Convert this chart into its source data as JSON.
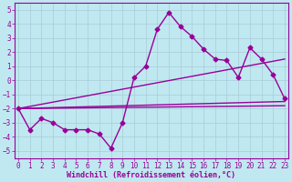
{
  "x": [
    0,
    1,
    2,
    3,
    4,
    5,
    6,
    7,
    8,
    9,
    10,
    11,
    12,
    13,
    14,
    15,
    16,
    17,
    18,
    19,
    20,
    21,
    22,
    23
  ],
  "y_main": [
    -2.0,
    -3.5,
    -2.7,
    -3.0,
    -3.5,
    -3.5,
    -3.5,
    -3.8,
    -4.8,
    -3.0,
    0.2,
    1.0,
    3.6,
    4.8,
    3.8,
    3.1,
    2.2,
    1.5,
    1.4,
    0.2,
    2.3,
    1.5,
    0.4,
    -1.3
  ],
  "straight_lines": [
    {
      "x0": 0,
      "y0": -2.0,
      "x1": 23,
      "y1": 1.5
    },
    {
      "x0": 0,
      "y0": -2.0,
      "x1": 23,
      "y1": -1.5
    },
    {
      "x0": 0,
      "y0": -2.0,
      "x1": 23,
      "y1": -1.8
    }
  ],
  "ylim": [
    -5.5,
    5.5
  ],
  "xlim": [
    -0.3,
    23.3
  ],
  "yticks": [
    -5,
    -4,
    -3,
    -2,
    -1,
    0,
    1,
    2,
    3,
    4,
    5
  ],
  "xticks": [
    0,
    1,
    2,
    3,
    4,
    5,
    6,
    7,
    8,
    9,
    10,
    11,
    12,
    13,
    14,
    15,
    16,
    17,
    18,
    19,
    20,
    21,
    22,
    23
  ],
  "xlabel": "Windchill (Refroidissement éolien,°C)",
  "line_color": "#990099",
  "bg_color": "#c0e8f0",
  "grid_color": "#a8ccd8",
  "marker": "D",
  "marker_size": 2.5,
  "line_width": 1.0,
  "tick_fontsize": 5.5,
  "xlabel_fontsize": 6.0
}
